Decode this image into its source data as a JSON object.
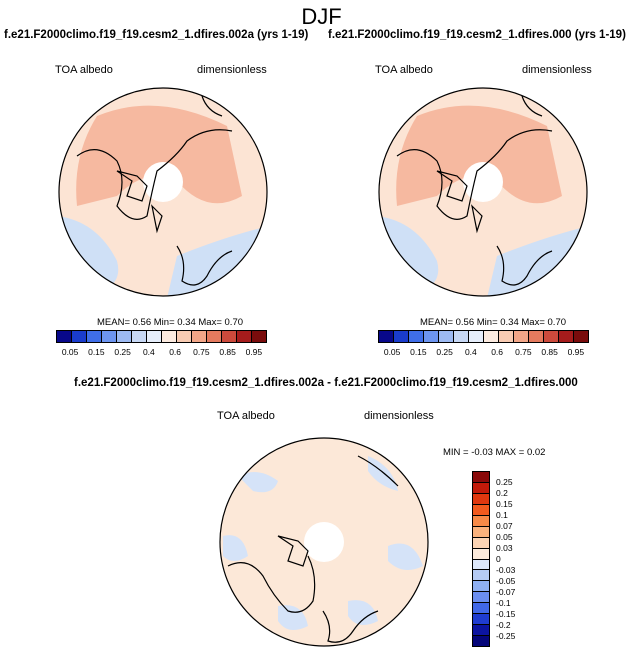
{
  "figure": {
    "season": "DJF"
  },
  "panels": [
    {
      "title": "f.e21.F2000climo.f19_f19.cesm2_1.dfires.002a (yrs 1-19)",
      "variable": "TOA albedo",
      "units": "dimensionless",
      "stats": "MEAN=  0.56  Min=  0.34  Max=  0.70"
    },
    {
      "title": "f.e21.F2000climo.f19_f19.cesm2_1.dfires.000 (yrs 1-19)",
      "variable": "TOA albedo",
      "units": "dimensionless",
      "stats": "MEAN=  0.56  Min=  0.34  Max=  0.70"
    }
  ],
  "diff_panel": {
    "title": "f.e21.F2000climo.f19_f19.cesm2_1.dfires.002a - f.e21.F2000climo.f19_f19.cesm2_1.dfires.000",
    "variable": "TOA albedo",
    "units": "dimensionless",
    "stats": "MIN =  -0.03 MAX =   0.02"
  },
  "colorbar_main": {
    "labels": [
      "0.05",
      "0.15",
      "0.25",
      "0.4",
      "0.6",
      "0.75",
      "0.85",
      "0.95"
    ],
    "colors": [
      "#08088a",
      "#1a3ccc",
      "#3f6ee8",
      "#6d95f0",
      "#9dbaf2",
      "#c7d8f5",
      "#e6eefb",
      "#fcebe0",
      "#f8cbb2",
      "#f2a688",
      "#e47a5e",
      "#cc4a3c",
      "#a51c1c",
      "#7a0c0c"
    ]
  },
  "colorbar_diff": {
    "labels": [
      "0.25",
      "0.2",
      "0.15",
      "0.1",
      "0.07",
      "0.05",
      "0.03",
      "0",
      "-0.03",
      "-0.05",
      "-0.07",
      "-0.1",
      "-0.15",
      "-0.2",
      "-0.25"
    ],
    "colors": [
      "#8a0a0a",
      "#c21a0a",
      "#e0380f",
      "#f25a1e",
      "#f78a48",
      "#fab27d",
      "#fcd4b4",
      "#fdebdc",
      "#dde8fb",
      "#b5cbf4",
      "#8eaff2",
      "#6b8ef0",
      "#4168e8",
      "#1f3cd0",
      "#0c14a0",
      "#05067a"
    ]
  },
  "map_colors": {
    "mean_background": "#fce4d4",
    "mean_high": "#f6b9a0",
    "mean_low": "#cfe0f6",
    "diff_background": "#fce8d8",
    "diff_low": "#d5e3f8",
    "coastline": "#000000",
    "pole_cap": "#ffffff"
  }
}
